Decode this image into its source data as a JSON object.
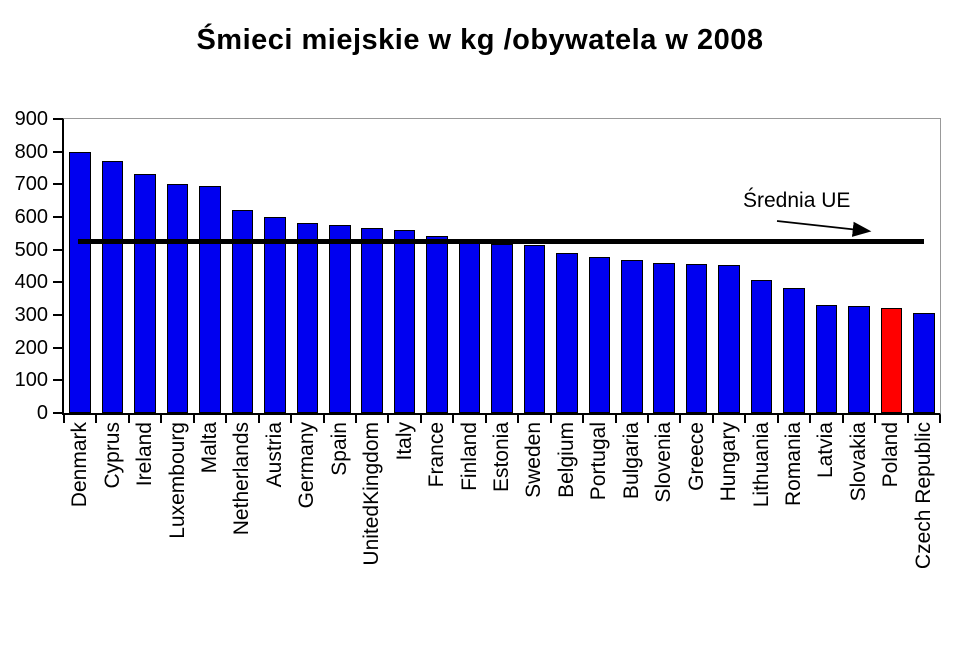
{
  "page": {
    "background": "#FFFFFF"
  },
  "chart_data": {
    "type": "bar",
    "title": "Śmieci miejskie w kg /obywatela w 2008",
    "categories": [
      "Denmark",
      "Cyprus",
      "Ireland",
      "Luxembourg",
      "Malta",
      "Netherlands",
      "Austria",
      "Germany",
      "Spain",
      "UnitedKingdom",
      "Italy",
      "France",
      "Finland",
      "Estonia",
      "Sweden",
      "Belgium",
      "Portugal",
      "Bulgaria",
      "Slovenia",
      "Greece",
      "Hungary",
      "Lithuania",
      "Romania",
      "Latvia",
      "Slovakia",
      "Poland",
      "Czech Republic"
    ],
    "values": [
      800,
      770,
      733,
      701,
      696,
      622,
      601,
      581,
      575,
      565,
      561,
      543,
      522,
      516,
      513,
      490,
      477,
      467,
      459,
      455,
      453,
      407,
      382,
      331,
      328,
      320,
      306
    ],
    "bar_color": "#0000F0",
    "highlight_category": "Poland",
    "highlight_color": "#FF0000",
    "xlabel": "",
    "ylabel": "",
    "ylim": [
      0,
      900
    ],
    "yticks": [
      0,
      100,
      200,
      300,
      400,
      500,
      600,
      700,
      800,
      900
    ],
    "legend": "none",
    "grid": "single gray gridline at y=900 (top) and gray right border",
    "reference_line": {
      "value": 525,
      "label": "Średnia UE",
      "color": "#000000"
    }
  }
}
